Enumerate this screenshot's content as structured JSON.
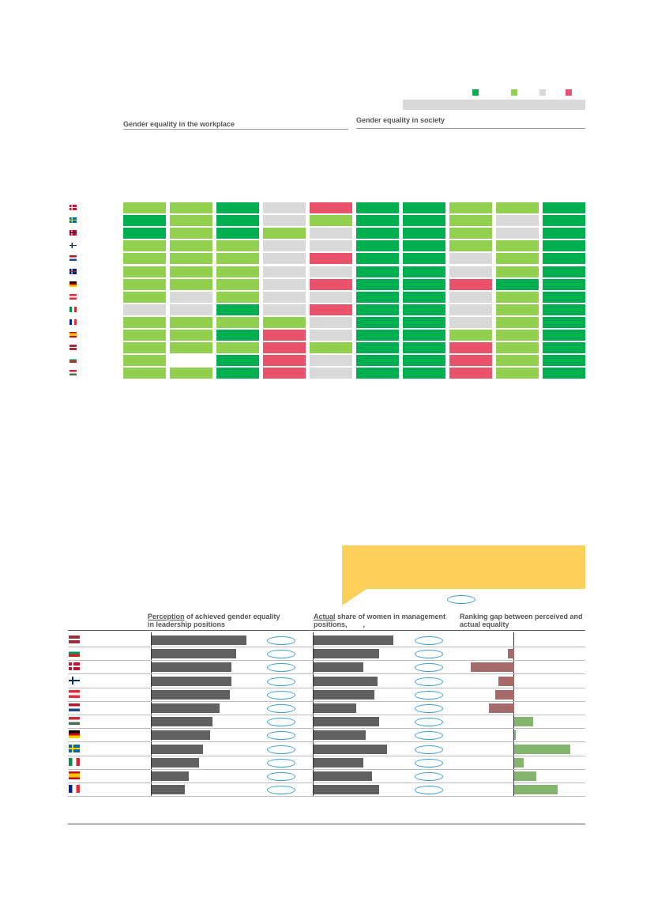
{
  "legend": {
    "colors": [
      "#00b050",
      "#92d050",
      "#d9d9d9",
      "#e8526a"
    ]
  },
  "heatmap": {
    "workplace_title": "Gender equality in the workplace",
    "society_title": "Gender equality in society",
    "countries": [
      {
        "flag": "denmark-flag"
      },
      {
        "flag": "sweden-flag"
      },
      {
        "flag": "norway-flag"
      },
      {
        "flag": "finland-flag"
      },
      {
        "flag": "netherlands-flag"
      },
      {
        "flag": "uk-flag"
      },
      {
        "flag": "germany-flag"
      },
      {
        "flag": "austria-flag"
      },
      {
        "flag": "italy-flag"
      },
      {
        "flag": "france-flag"
      },
      {
        "flag": "spain-flag"
      },
      {
        "flag": "latvia-flag"
      },
      {
        "flag": "bulgaria-flag"
      },
      {
        "flag": "hungary-flag"
      }
    ]
  },
  "bars": {
    "callout_color": "#fdd05a",
    "col1_title_u": "Perception",
    "col1_title_rest": " of achieved gender equality",
    "col1_title_line2": "in leadership positions",
    "col2_title_u": "Actual",
    "col2_title_rest": " share of women in management",
    "col2_title_line2": "positions,        ,",
    "col3_title": "Ranking gap between perceived and",
    "col3_title_line2": "actual equality",
    "countries": [
      {
        "flag": "latvia-flag"
      },
      {
        "flag": "bulgaria-flag"
      },
      {
        "flag": "denmark-flag"
      },
      {
        "flag": "finland-flag"
      },
      {
        "flag": "austria-flag"
      },
      {
        "flag": "netherlands-flag"
      },
      {
        "flag": "hungary-flag"
      },
      {
        "flag": "germany-flag"
      },
      {
        "flag": "sweden-flag"
      },
      {
        "flag": "italy-flag"
      },
      {
        "flag": "spain-flag"
      },
      {
        "flag": "france-flag"
      }
    ]
  },
  "chart_data": [
    {
      "type": "heatmap",
      "title": "",
      "column_groups": [
        {
          "name": "Gender equality in the workplace",
          "columns": 5
        },
        {
          "name": "Gender equality in society",
          "columns": 5
        }
      ],
      "levels": {
        "3": "#00b050",
        "2": "#92d050",
        "1": "#d9d9d9",
        "0": "#e8526a",
        "-1": "#ffffff"
      },
      "rows": [
        [
          2,
          2,
          3,
          1,
          0,
          3,
          3,
          2,
          2,
          3
        ],
        [
          3,
          2,
          3,
          1,
          2,
          3,
          3,
          2,
          1,
          3
        ],
        [
          3,
          2,
          3,
          2,
          1,
          3,
          3,
          2,
          1,
          3
        ],
        [
          2,
          2,
          2,
          1,
          1,
          3,
          3,
          2,
          2,
          3
        ],
        [
          2,
          2,
          2,
          1,
          0,
          3,
          3,
          1,
          2,
          3
        ],
        [
          2,
          2,
          2,
          1,
          1,
          3,
          3,
          1,
          2,
          3
        ],
        [
          2,
          2,
          2,
          1,
          0,
          3,
          3,
          0,
          3,
          3
        ],
        [
          2,
          1,
          2,
          1,
          1,
          3,
          3,
          1,
          2,
          3
        ],
        [
          1,
          1,
          3,
          1,
          0,
          3,
          3,
          1,
          2,
          3
        ],
        [
          2,
          2,
          2,
          2,
          1,
          3,
          3,
          1,
          2,
          3
        ],
        [
          2,
          2,
          3,
          0,
          1,
          3,
          3,
          2,
          2,
          3
        ],
        [
          2,
          2,
          2,
          0,
          2,
          3,
          3,
          0,
          2,
          3
        ],
        [
          2,
          -1,
          3,
          0,
          1,
          3,
          3,
          0,
          2,
          3
        ],
        [
          2,
          2,
          3,
          0,
          1,
          3,
          3,
          0,
          2,
          3
        ]
      ]
    },
    {
      "type": "bar",
      "title": "",
      "series": [
        {
          "values": [
            0.8,
            0.71,
            0.67,
            0.67,
            0.66,
            0.57,
            0.51,
            0.49,
            0.43,
            0.4,
            0.31,
            0.28
          ]
        },
        {
          "values": [
            0.67,
            0.55,
            0.42,
            0.54,
            0.51,
            0.36,
            0.55,
            0.44,
            0.62,
            0.42,
            0.49,
            0.55
          ]
        },
        {
          "values": [
            0,
            -1,
            -7,
            -2.5,
            -3,
            -4,
            3,
            0.3,
            9,
            1.5,
            3.5,
            7
          ]
        }
      ]
    }
  ]
}
